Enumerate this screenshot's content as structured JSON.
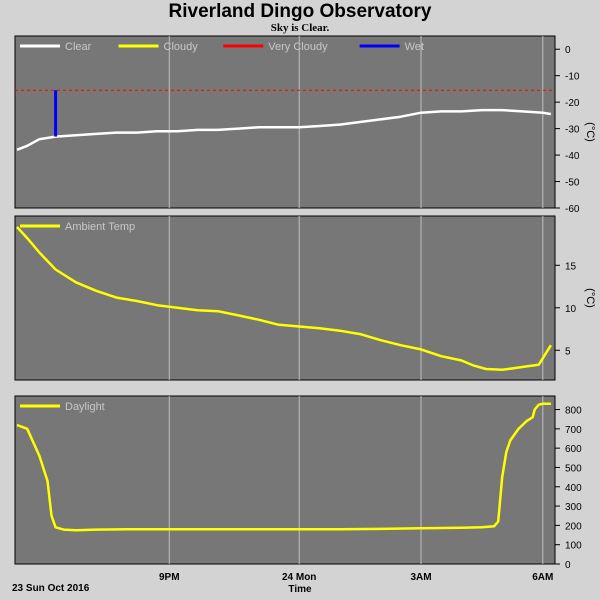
{
  "header": {
    "title": "Riverland Dingo Observatory",
    "subtitle": "Sky is Clear."
  },
  "footer": {
    "date": "23 Sun Oct 2016",
    "xlabel": "Time"
  },
  "colors": {
    "background": "#d3d3d3",
    "plot_bg": "#777777",
    "grid": "#c0c0c0",
    "clear": "#ffffff",
    "cloudy": "#ffff00",
    "very_cloudy": "#ff0000",
    "wet": "#0000ff"
  },
  "chart_data": [
    {
      "type": "line",
      "name": "sky-temperature",
      "legend": [
        {
          "label": "Clear",
          "color": "#ffffff"
        },
        {
          "label": "Cloudy",
          "color": "#ffff00"
        },
        {
          "label": "Very Cloudy",
          "color": "#ff0000"
        },
        {
          "label": "Wet",
          "color": "#0000ff"
        }
      ],
      "ylabel": "(°C)",
      "ylim": [
        -60,
        5
      ],
      "yticks": [
        0,
        -10,
        -20,
        -30,
        -40,
        -50,
        -60
      ],
      "xlim": [
        17.0,
        30.3
      ],
      "xticks": [
        {
          "x": 20.8,
          "label": "9PM"
        },
        {
          "x": 24.0,
          "label": "24 Mon"
        },
        {
          "x": 27.0,
          "label": "3AM"
        },
        {
          "x": 30.0,
          "label": "6AM"
        }
      ],
      "threshold": {
        "label": "Very Cloudy",
        "value": -15.5
      },
      "wet_marker": {
        "x": 18.0,
        "y_from": -33,
        "y_to": -15.5
      },
      "series": [
        {
          "label": "Clear",
          "color": "#ffffff",
          "x": [
            17.05,
            17.3,
            17.6,
            18.0,
            18.5,
            19.0,
            19.5,
            20.0,
            20.5,
            21.0,
            21.5,
            22.0,
            22.5,
            23.0,
            23.5,
            24.0,
            24.5,
            25.0,
            25.5,
            26.0,
            26.5,
            27.0,
            27.5,
            28.0,
            28.5,
            29.0,
            29.5,
            30.0,
            30.2
          ],
          "y": [
            -38,
            -36.5,
            -34,
            -33,
            -32.5,
            -32,
            -31.5,
            -31.5,
            -31,
            -31,
            -30.5,
            -30.5,
            -30,
            -29.5,
            -29.5,
            -29.5,
            -29,
            -28.5,
            -27.5,
            -26.5,
            -25.5,
            -24,
            -23.5,
            -23.5,
            -23,
            -23,
            -23.5,
            -24,
            -24.5
          ]
        }
      ]
    },
    {
      "type": "line",
      "name": "ambient-temperature",
      "legend": [
        {
          "label": "Ambient Temp",
          "color": "#ffff00"
        }
      ],
      "ylabel": "(°C)",
      "ylim": [
        1.5,
        20.8
      ],
      "yticks": [
        5,
        10,
        15
      ],
      "xlim": [
        17.0,
        30.3
      ],
      "series": [
        {
          "label": "Ambient Temp",
          "color": "#ffff00",
          "x": [
            17.05,
            17.3,
            17.6,
            18.0,
            18.5,
            19.0,
            19.5,
            20.0,
            20.5,
            21.0,
            21.5,
            22.0,
            22.5,
            23.0,
            23.5,
            24.0,
            24.5,
            25.0,
            25.5,
            26.0,
            26.5,
            27.0,
            27.5,
            28.0,
            28.3,
            28.6,
            29.0,
            29.3,
            29.6,
            29.9,
            30.2
          ],
          "y": [
            19.5,
            18.2,
            16.5,
            14.5,
            13,
            12,
            11.2,
            10.8,
            10.3,
            10,
            9.7,
            9.6,
            9.1,
            8.6,
            8,
            7.8,
            7.6,
            7.3,
            6.9,
            6.2,
            5.6,
            5.1,
            4.3,
            3.8,
            3.2,
            2.8,
            2.7,
            2.9,
            3.1,
            3.3,
            5.6
          ]
        }
      ]
    },
    {
      "type": "line",
      "name": "daylight",
      "legend": [
        {
          "label": "Daylight",
          "color": "#ffff00"
        }
      ],
      "ylim": [
        0,
        870
      ],
      "yticks": [
        0,
        100,
        200,
        300,
        400,
        500,
        600,
        700,
        800
      ],
      "xlim": [
        17.0,
        30.3
      ],
      "series": [
        {
          "label": "Daylight",
          "color": "#ffff00",
          "x": [
            17.05,
            17.3,
            17.6,
            17.8,
            17.9,
            18.0,
            18.2,
            18.5,
            19.0,
            20.0,
            21.0,
            22.0,
            23.0,
            24.0,
            25.0,
            26.0,
            27.0,
            28.0,
            28.5,
            28.8,
            28.9,
            29.0,
            29.1,
            29.2,
            29.4,
            29.6,
            29.75,
            29.8,
            29.9,
            30.0,
            30.2
          ],
          "y": [
            720,
            700,
            560,
            430,
            250,
            190,
            178,
            175,
            178,
            180,
            180,
            180,
            180,
            180,
            180,
            182,
            185,
            188,
            190,
            195,
            220,
            450,
            580,
            640,
            700,
            740,
            760,
            800,
            825,
            830,
            830
          ]
        }
      ]
    }
  ]
}
